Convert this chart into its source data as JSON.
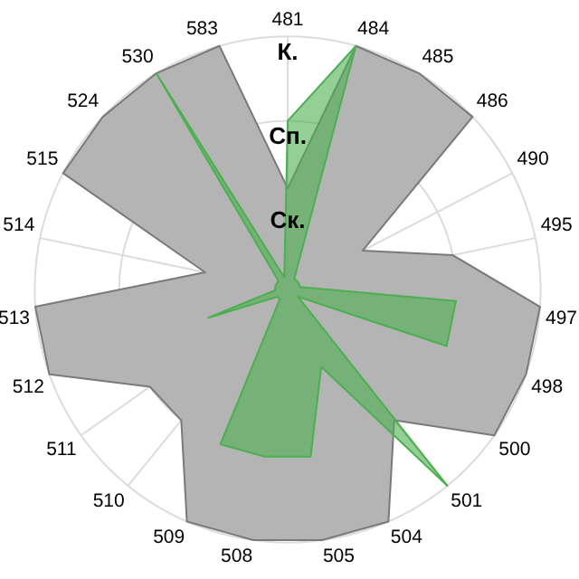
{
  "chart_data": {
    "type": "radar",
    "categories": [
      "481",
      "484",
      "485",
      "486",
      "490",
      "495",
      "497",
      "498",
      "500",
      "501",
      "504",
      "505",
      "508",
      "509",
      "510",
      "511",
      "512",
      "513",
      "514",
      "515",
      "524",
      "530",
      "583"
    ],
    "series": [
      {
        "color": "#b4b4b4",
        "values": [
          1.2,
          3,
          3,
          3,
          1,
          2,
          3,
          3,
          3,
          2,
          3,
          3,
          3,
          3,
          2,
          2,
          3,
          3,
          1,
          3,
          3,
          3,
          3
        ]
      },
      {
        "color": "#4caf50",
        "values": [
          2,
          3,
          0.15,
          0.15,
          0.15,
          0.15,
          2,
          2,
          0.15,
          3,
          1,
          2,
          2,
          2,
          0.15,
          0.15,
          1,
          0.15,
          0.15,
          0.15,
          0.15,
          3,
          0.15
        ]
      }
    ],
    "ylim": [
      0,
      3
    ],
    "yticks": [
      {
        "value": 1,
        "label": "Ск."
      },
      {
        "value": 2,
        "label": "Сп."
      },
      {
        "value": 3,
        "label": "К."
      }
    ],
    "grid": true,
    "legend": false,
    "marker": "none",
    "line_style": "solid"
  }
}
